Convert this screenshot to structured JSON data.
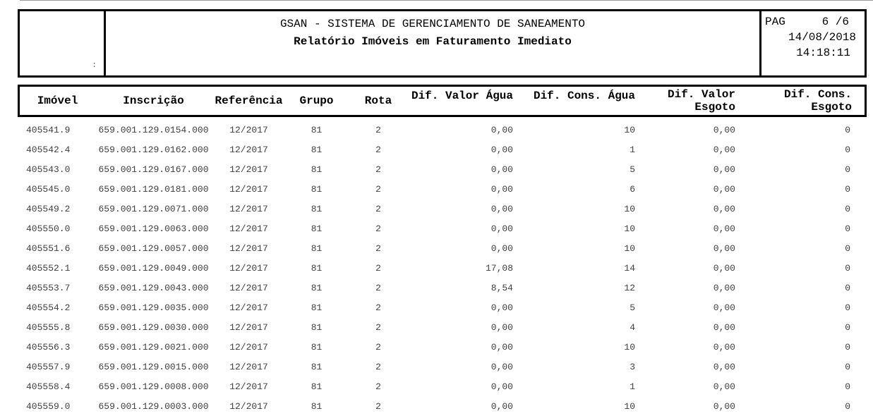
{
  "header": {
    "title_line1": "GSAN - SISTEMA DE GERENCIAMENTO DE SANEAMENTO",
    "title_line2": "Relatório Imóveis em Faturamento Imediato",
    "logo_mark": ":",
    "page": {
      "label": "PAG",
      "value": "6 /6"
    },
    "date": "14/08/2018",
    "time": "14:18:11"
  },
  "table": {
    "columns": [
      {
        "label": "Imóvel"
      },
      {
        "label": "Inscrição"
      },
      {
        "label": "Referência"
      },
      {
        "label": "Grupo"
      },
      {
        "label": "Rota"
      },
      {
        "label": "Dif. Valor Água"
      },
      {
        "label": "Dif. Cons. Água"
      },
      {
        "label": "Dif. Valor",
        "label2": "Esgoto"
      },
      {
        "label": "Dif. Cons.",
        "label2": "Esgoto"
      }
    ],
    "rows": [
      [
        "405541.9",
        "659.001.129.0154.000",
        "12/2017",
        "81",
        "2",
        "0,00",
        "10",
        "0,00",
        "0"
      ],
      [
        "405542.4",
        "659.001.129.0162.000",
        "12/2017",
        "81",
        "2",
        "0,00",
        "1",
        "0,00",
        "0"
      ],
      [
        "405543.0",
        "659.001.129.0167.000",
        "12/2017",
        "81",
        "2",
        "0,00",
        "5",
        "0,00",
        "0"
      ],
      [
        "405545.0",
        "659.001.129.0181.000",
        "12/2017",
        "81",
        "2",
        "0,00",
        "6",
        "0,00",
        "0"
      ],
      [
        "405549.2",
        "659.001.129.0071.000",
        "12/2017",
        "81",
        "2",
        "0,00",
        "10",
        "0,00",
        "0"
      ],
      [
        "405550.0",
        "659.001.129.0063.000",
        "12/2017",
        "81",
        "2",
        "0,00",
        "10",
        "0,00",
        "0"
      ],
      [
        "405551.6",
        "659.001.129.0057.000",
        "12/2017",
        "81",
        "2",
        "0,00",
        "10",
        "0,00",
        "0"
      ],
      [
        "405552.1",
        "659.001.129.0049.000",
        "12/2017",
        "81",
        "2",
        "17,08",
        "14",
        "0,00",
        "0"
      ],
      [
        "405553.7",
        "659.001.129.0043.000",
        "12/2017",
        "81",
        "2",
        "8,54",
        "12",
        "0,00",
        "0"
      ],
      [
        "405554.2",
        "659.001.129.0035.000",
        "12/2017",
        "81",
        "2",
        "0,00",
        "5",
        "0,00",
        "0"
      ],
      [
        "405555.8",
        "659.001.129.0030.000",
        "12/2017",
        "81",
        "2",
        "0,00",
        "4",
        "0,00",
        "0"
      ],
      [
        "405556.3",
        "659.001.129.0021.000",
        "12/2017",
        "81",
        "2",
        "0,00",
        "10",
        "0,00",
        "0"
      ],
      [
        "405557.9",
        "659.001.129.0015.000",
        "12/2017",
        "81",
        "2",
        "0,00",
        "3",
        "0,00",
        "0"
      ],
      [
        "405558.4",
        "659.001.129.0008.000",
        "12/2017",
        "81",
        "2",
        "0,00",
        "1",
        "0,00",
        "0"
      ],
      [
        "405559.0",
        "659.001.129.0003.000",
        "12/2017",
        "81",
        "2",
        "0,00",
        "10",
        "0,00",
        "0"
      ]
    ]
  }
}
